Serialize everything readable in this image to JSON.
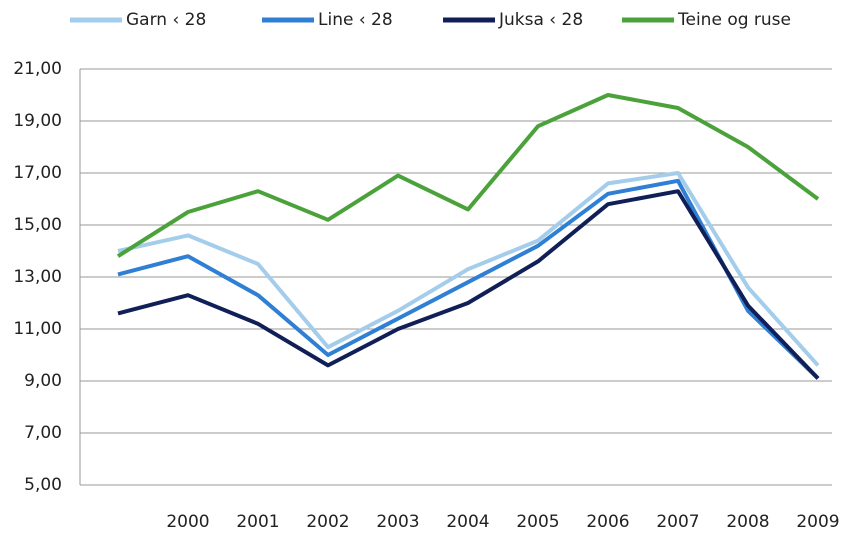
{
  "chart_data": {
    "type": "line",
    "categories": [
      null,
      "2000",
      "2001",
      "2002",
      "2003",
      "2004",
      "2005",
      "2006",
      "2007",
      "2008",
      "2009"
    ],
    "series": [
      {
        "name": "Garn ‹ 28",
        "color": "#a3cdea",
        "values": [
          14.0,
          14.6,
          13.5,
          10.3,
          11.7,
          13.3,
          14.4,
          16.6,
          17.0,
          12.6,
          9.6
        ]
      },
      {
        "name": "Line ‹ 28",
        "color": "#2f7fd4",
        "values": [
          13.1,
          13.8,
          12.3,
          10.0,
          11.4,
          12.8,
          14.2,
          16.2,
          16.7,
          11.7,
          9.1
        ]
      },
      {
        "name": "Juksa ‹ 28",
        "color": "#111f57",
        "values": [
          11.6,
          12.3,
          11.2,
          9.6,
          11.0,
          12.0,
          13.6,
          15.8,
          16.3,
          11.9,
          9.1
        ]
      },
      {
        "name": "Teine og ruse",
        "color": "#4ba23b",
        "values": [
          13.8,
          15.5,
          16.3,
          15.2,
          16.9,
          15.6,
          18.8,
          20.0,
          19.5,
          18.0,
          16.0
        ]
      }
    ],
    "ylim": [
      5,
      21
    ],
    "yticks": [
      {
        "value": 5,
        "label": "5,00"
      },
      {
        "value": 7,
        "label": "7,00"
      },
      {
        "value": 9,
        "label": "9,00"
      },
      {
        "value": 11,
        "label": "11,00"
      },
      {
        "value": 13,
        "label": "13,00"
      },
      {
        "value": 15,
        "label": "15,00"
      },
      {
        "value": 17,
        "label": "17,00"
      },
      {
        "value": 19,
        "label": "19,00"
      },
      {
        "value": 21,
        "label": "21,00"
      }
    ],
    "grid": true,
    "legend": "top"
  }
}
